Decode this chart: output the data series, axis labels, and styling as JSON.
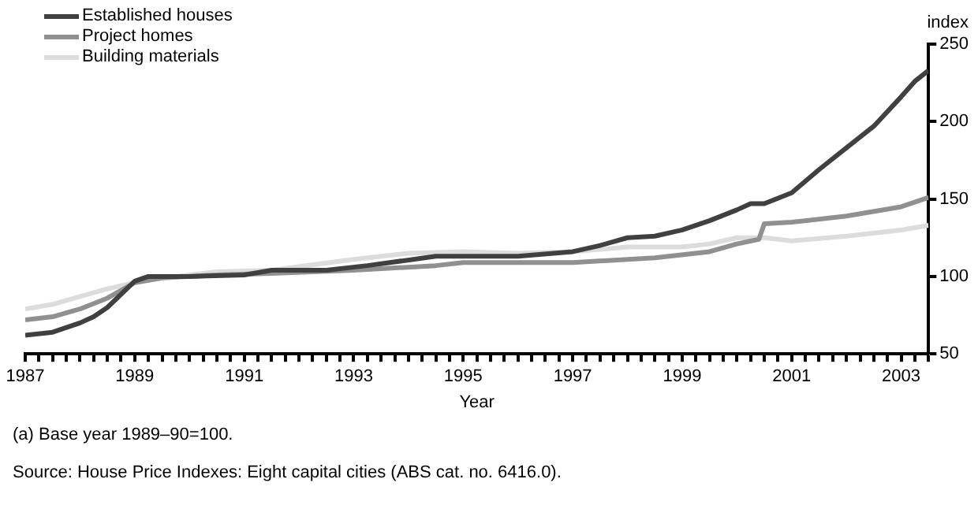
{
  "chart_data": {
    "type": "line",
    "xlabel": "Year",
    "ylabel": "index",
    "legend": "top left",
    "grid": false,
    "annotations": [
      "(a) Base year 1989–90=100.",
      "Source: House Price Indexes: Eight capital cities (ABS cat. no. 6416.0)."
    ],
    "xlim": [
      1987,
      2003.5
    ],
    "ylim": [
      50,
      250
    ],
    "yticks": [
      50,
      100,
      150,
      200,
      250
    ],
    "xticks": [
      1987,
      {
        "value": 1987.25,
        "label": null
      },
      {
        "value": 1987.5,
        "label": null
      },
      {
        "value": 1987.75,
        "label": null
      },
      {
        "value": 1988,
        "label": null
      },
      {
        "value": 1988.25,
        "label": null
      },
      {
        "value": 1988.5,
        "label": null
      },
      {
        "value": 1988.75,
        "label": null
      },
      1989,
      {
        "value": 1989.25,
        "label": null
      },
      {
        "value": 1989.5,
        "label": null
      },
      {
        "value": 1989.75,
        "label": null
      },
      {
        "value": 1990,
        "label": null
      },
      {
        "value": 1990.25,
        "label": null
      },
      {
        "value": 1990.5,
        "label": null
      },
      {
        "value": 1990.75,
        "label": null
      },
      1991,
      {
        "value": 1991.25,
        "label": null
      },
      {
        "value": 1991.5,
        "label": null
      },
      {
        "value": 1991.75,
        "label": null
      },
      {
        "value": 1992,
        "label": null
      },
      {
        "value": 1992.25,
        "label": null
      },
      {
        "value": 1992.5,
        "label": null
      },
      {
        "value": 1992.75,
        "label": null
      },
      1993,
      {
        "value": 1993.25,
        "label": null
      },
      {
        "value": 1993.5,
        "label": null
      },
      {
        "value": 1993.75,
        "label": null
      },
      {
        "value": 1994,
        "label": null
      },
      {
        "value": 1994.25,
        "label": null
      },
      {
        "value": 1994.5,
        "label": null
      },
      {
        "value": 1994.75,
        "label": null
      },
      1995,
      {
        "value": 1995.25,
        "label": null
      },
      {
        "value": 1995.5,
        "label": null
      },
      {
        "value": 1995.75,
        "label": null
      },
      {
        "value": 1996,
        "label": null
      },
      {
        "value": 1996.25,
        "label": null
      },
      {
        "value": 1996.5,
        "label": null
      },
      {
        "value": 1996.75,
        "label": null
      },
      1997,
      {
        "value": 1997.25,
        "label": null
      },
      {
        "value": 1997.5,
        "label": null
      },
      {
        "value": 1997.75,
        "label": null
      },
      {
        "value": 1998,
        "label": null
      },
      {
        "value": 1998.25,
        "label": null
      },
      {
        "value": 1998.5,
        "label": null
      },
      {
        "value": 1998.75,
        "label": null
      },
      1999,
      {
        "value": 1999.25,
        "label": null
      },
      {
        "value": 1999.5,
        "label": null
      },
      {
        "value": 1999.75,
        "label": null
      },
      {
        "value": 2000,
        "label": null
      },
      {
        "value": 2000.25,
        "label": null
      },
      {
        "value": 2000.5,
        "label": null
      },
      {
        "value": 2000.75,
        "label": null
      },
      2001,
      {
        "value": 2001.25,
        "label": null
      },
      {
        "value": 2001.5,
        "label": null
      },
      {
        "value": 2001.75,
        "label": null
      },
      {
        "value": 2002,
        "label": null
      },
      {
        "value": 2002.25,
        "label": null
      },
      {
        "value": 2002.5,
        "label": null
      },
      {
        "value": 2002.75,
        "label": null
      },
      2003,
      {
        "value": 2003.25,
        "label": null
      },
      {
        "value": 2003.5,
        "label": null
      }
    ],
    "series": [
      {
        "name": "Established houses",
        "color": "#404040",
        "x": [
          1987,
          1987.5,
          1988,
          1988.25,
          1988.5,
          1989,
          1989.25,
          1990,
          1991,
          1991.5,
          1992.5,
          1993.25,
          1994.5,
          1995,
          1996,
          1997,
          1997.5,
          1998,
          1998.5,
          1999,
          1999.5,
          2000,
          2000.25,
          2000.5,
          2001,
          2001.5,
          2002,
          2002.5,
          2003,
          2003.25,
          2003.5
        ],
        "values": [
          62,
          64,
          70,
          74,
          80,
          97,
          100,
          100,
          101,
          104,
          104,
          107,
          113,
          113,
          113,
          116,
          120,
          125,
          126,
          130,
          136,
          143,
          147,
          147,
          154,
          169,
          183,
          197,
          216,
          226,
          233
        ]
      },
      {
        "name": "Project homes",
        "color": "#909090",
        "x": [
          1987,
          1987.5,
          1988,
          1988.5,
          1989,
          1989.5,
          1990.5,
          1991.5,
          1993,
          1994.5,
          1995,
          1997,
          1998.5,
          1999.5,
          2000,
          2000.4,
          2000.5,
          2001,
          2002,
          2003,
          2003.5
        ],
        "values": [
          72,
          74,
          79,
          86,
          96,
          99,
          101,
          102,
          104,
          107,
          109,
          109,
          112,
          116,
          121,
          124,
          134,
          135,
          139,
          145,
          151
        ]
      },
      {
        "name": "Building materials",
        "color": "#dcdcdc",
        "x": [
          1987,
          1987.5,
          1988,
          1988.5,
          1989,
          1989.5,
          1990.5,
          1991.5,
          1993,
          1994,
          1995,
          1996,
          1997,
          1998,
          1999,
          1999.5,
          2000,
          2000.5,
          2001,
          2002,
          2003,
          2003.5
        ],
        "values": [
          79,
          82,
          87,
          92,
          96,
          99,
          103,
          104,
          111,
          115,
          116,
          115,
          116,
          119,
          119,
          121,
          125,
          125,
          123,
          126,
          130,
          133
        ]
      }
    ]
  }
}
